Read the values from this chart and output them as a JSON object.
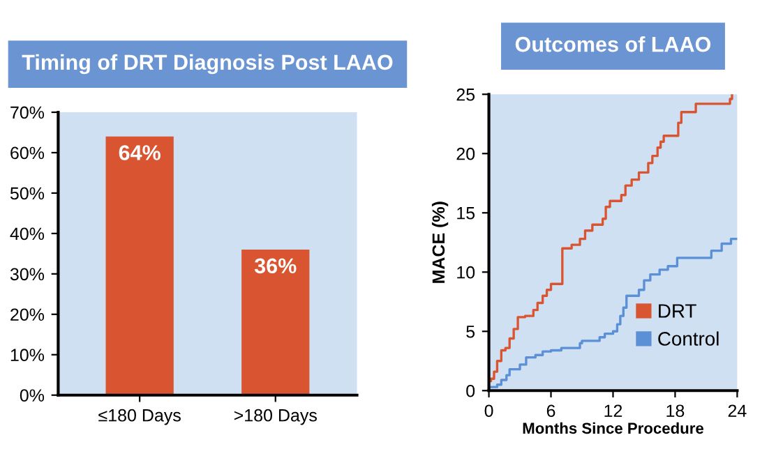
{
  "chart_data": [
    {
      "type": "bar",
      "title": "Timing of DRT Diagnosis Post LAAO",
      "categories": [
        "≤180 Days",
        ">180 Days"
      ],
      "values": [
        64,
        36
      ],
      "color": "#d95532",
      "value_labels": [
        "64%",
        "36%"
      ],
      "ylim": [
        0,
        70
      ],
      "yticks": [
        {
          "value": 0,
          "label": "0%"
        },
        {
          "value": 10,
          "label": "10%"
        },
        {
          "value": 20,
          "label": "20%"
        },
        {
          "value": 30,
          "label": "30%"
        },
        {
          "value": 40,
          "label": "40%"
        },
        {
          "value": 50,
          "label": "50%"
        },
        {
          "value": 60,
          "label": "60%"
        },
        {
          "value": 70,
          "label": "70%"
        }
      ],
      "grid": false
    },
    {
      "type": "step",
      "title": "Outcomes of LAAO",
      "xlabel": "Months Since Procedure",
      "ylabel": "MACE (%)",
      "xlim": [
        0,
        24
      ],
      "ylim": [
        0,
        25
      ],
      "xticks": [
        0,
        6,
        12,
        18,
        24
      ],
      "yticks": [
        0,
        5,
        10,
        15,
        20,
        25
      ],
      "grid": false,
      "legend": "bottom right",
      "series": [
        {
          "name": "DRT",
          "color": "#d95532",
          "x": [
            0,
            0.2,
            0.5,
            0.8,
            1.2,
            1.6,
            2,
            2.4,
            2.8,
            3.5,
            4.3,
            4.7,
            5.2,
            5.6,
            6,
            7.1,
            8,
            8.8,
            9.3,
            10,
            11,
            11.3,
            11.7,
            12.8,
            13.2,
            13.8,
            14.5,
            15.4,
            15.8,
            16.3,
            16.6,
            16.9,
            18.3,
            18.6,
            20,
            23.3,
            23.5
          ],
          "values": [
            0.8,
            1.0,
            1.6,
            2.5,
            3.4,
            3.6,
            4.4,
            5.2,
            6.2,
            6.3,
            6.8,
            7.4,
            8.0,
            8.5,
            9,
            12,
            12.3,
            12.8,
            13.5,
            14,
            14.5,
            15.5,
            16,
            16.5,
            17.3,
            17.8,
            18.4,
            19.2,
            19.8,
            20.5,
            21,
            21.5,
            22.6,
            23.5,
            24.2,
            24.6,
            25
          ]
        },
        {
          "name": "Control",
          "color": "#5b8fd6",
          "x": [
            0,
            0.8,
            1.2,
            1.7,
            2,
            3,
            3.6,
            4.5,
            5.2,
            6,
            7,
            8.8,
            9,
            10.7,
            11.2,
            12,
            12.4,
            12.7,
            13,
            13.3,
            14.5,
            15,
            15.6,
            16.5,
            17.3,
            18.2,
            21.5,
            22.5,
            23.4,
            24
          ],
          "values": [
            0.3,
            0.5,
            0.9,
            1.3,
            1.8,
            2.2,
            2.8,
            3.0,
            3.3,
            3.4,
            3.6,
            4.0,
            4.2,
            4.5,
            4.8,
            5.0,
            5.6,
            6.3,
            7,
            8.0,
            8.5,
            9.3,
            9.8,
            10.2,
            10.5,
            11.2,
            11.8,
            12.4,
            12.8,
            12.8
          ]
        }
      ]
    }
  ]
}
